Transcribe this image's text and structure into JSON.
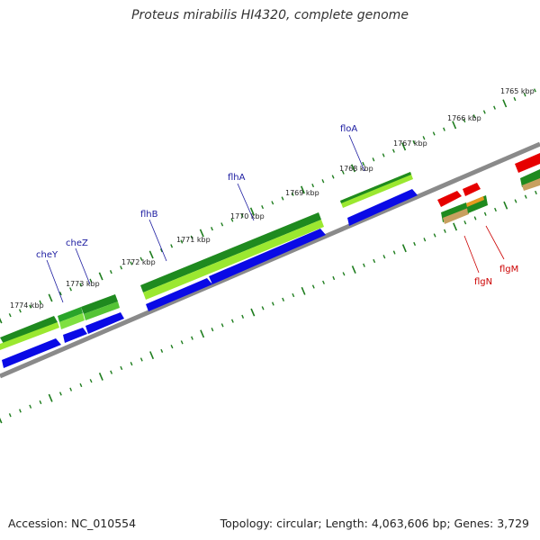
{
  "title": "Proteus mirabilis HI4320, complete genome",
  "accession": "Accession: NC_010554",
  "summary": "Topology: circular; Length: 4,063,606 bp; Genes: 3,729",
  "colors": {
    "backbone": "#8a8a8a",
    "tick": "#1e7d1e",
    "blue": "#0a0ae6",
    "dark_green": "#1f8a1f",
    "light_green": "#9be830",
    "red": "#e60000",
    "gene_label_blue": "#1a1aa0",
    "gene_label_red": "#cc0000"
  },
  "tick_labels": [
    "1765 kbp",
    "1766 kbp",
    "1767 kbp",
    "1768 kbp",
    "1769 kbp",
    "1770 kbp",
    "1771 kbp",
    "1772 kbp",
    "1773 kbp",
    "1774 kbp"
  ],
  "gene_labels": {
    "floA": "floA",
    "flhA": "flhA",
    "flhB": "flhB",
    "cheZ": "cheZ",
    "cheY": "cheY",
    "flgN": "flgN",
    "flgM": "flgM"
  }
}
